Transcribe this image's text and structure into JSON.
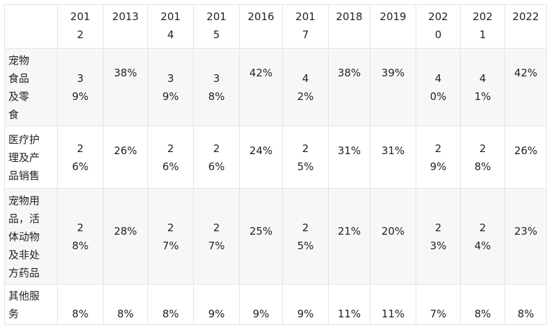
{
  "table": {
    "corner": "",
    "years": [
      "2012",
      "2013",
      "2014",
      "2015",
      "2016",
      "2017",
      "2018",
      "2019",
      "2020",
      "2021",
      "2022"
    ],
    "rows": [
      {
        "label": "宠物食品及零食",
        "values": [
          "39%",
          "38%",
          "39%",
          "38%",
          "42%",
          "42%",
          "38%",
          "39%",
          "40%",
          "41%",
          "42%"
        ]
      },
      {
        "label": "医疗护理及产品销售",
        "values": [
          "26%",
          "26%",
          "26%",
          "26%",
          "24%",
          "25%",
          "31%",
          "31%",
          "29%",
          "28%",
          "26%"
        ]
      },
      {
        "label": "宠物用品，活体动物及非处方药品",
        "values": [
          "28%",
          "28%",
          "27%",
          "27%",
          "25%",
          "25%",
          "21%",
          "20%",
          "23%",
          "24%",
          "23%"
        ]
      },
      {
        "label": "其他服务",
        "values": [
          "8%",
          "8%",
          "8%",
          "9%",
          "9%",
          "9%",
          "11%",
          "11%",
          "7%",
          "8%",
          "8%"
        ]
      }
    ]
  }
}
